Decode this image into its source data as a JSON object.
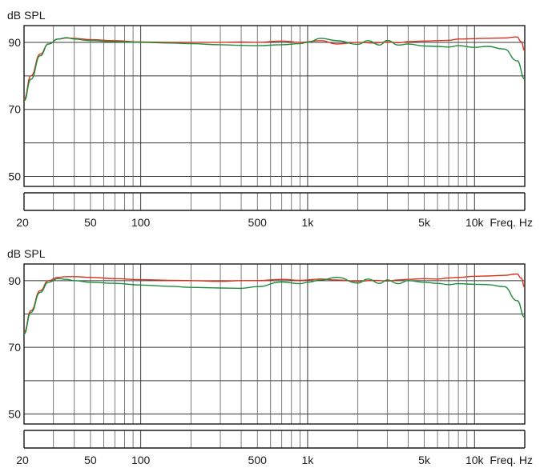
{
  "chart_data": [
    {
      "type": "line",
      "ylabel": "dB SPL",
      "xlabel": "Freq. Hz",
      "xscale": "log",
      "xlim": [
        20,
        20000
      ],
      "ylim": [
        47,
        95
      ],
      "ytick_labels": [
        "90",
        "70",
        "50"
      ],
      "yticks": [
        90,
        70,
        50
      ],
      "ygrid": [
        90,
        80,
        70,
        60,
        50
      ],
      "xtick_labels": [
        "20",
        "50",
        "100",
        "500",
        "1k",
        "5k",
        "10k"
      ],
      "xticks": [
        20,
        50,
        100,
        500,
        1000,
        5000,
        10000
      ],
      "series": [
        {
          "color": "#d9331f",
          "x": [
            20,
            22,
            25,
            28,
            32,
            36,
            40,
            50,
            70,
            100,
            150,
            200,
            300,
            400,
            500,
            700,
            900,
            1200,
            1500,
            2000,
            2500,
            3000,
            3500,
            4000,
            5000,
            6000,
            7000,
            8000,
            10000,
            12000,
            15000,
            18000,
            19000,
            20000
          ],
          "y": [
            73,
            80,
            86.5,
            89.5,
            91,
            91.3,
            91.2,
            90.8,
            90.5,
            90.1,
            90,
            90,
            90,
            90.1,
            90,
            90.4,
            90,
            90.5,
            89.5,
            90,
            89.8,
            90.1,
            89.9,
            90.2,
            90.4,
            90.5,
            90.6,
            91,
            91.1,
            91.2,
            91.3,
            91.6,
            90.2,
            87.5
          ]
        },
        {
          "color": "#1f8c3a",
          "x": [
            20,
            22,
            25,
            28,
            32,
            36,
            40,
            50,
            70,
            100,
            150,
            200,
            300,
            400,
            500,
            700,
            900,
            1000,
            1200,
            1500,
            2000,
            2300,
            2700,
            3000,
            3500,
            4000,
            5000,
            6000,
            7000,
            8000,
            10000,
            12000,
            15000,
            18000,
            20000
          ],
          "y": [
            72.5,
            79,
            86,
            89.5,
            91,
            91.4,
            91,
            90.5,
            90.2,
            90,
            89.8,
            89.6,
            89.3,
            89.1,
            89,
            89.3,
            89.6,
            90,
            91.2,
            90.5,
            89.4,
            90.5,
            89.2,
            90.6,
            89.2,
            89.5,
            88.9,
            88.8,
            88.6,
            89,
            88.5,
            88.8,
            88,
            84.5,
            79
          ]
        }
      ]
    },
    {
      "type": "line",
      "ylabel": "dB SPL",
      "xlabel": "Freq. Hz",
      "xscale": "log",
      "xlim": [
        20,
        20000
      ],
      "ylim": [
        47,
        95
      ],
      "ytick_labels": [
        "90",
        "70",
        "50"
      ],
      "yticks": [
        90,
        70,
        50
      ],
      "ygrid": [
        90,
        80,
        70,
        60,
        50
      ],
      "xtick_labels": [
        "20",
        "50",
        "100",
        "500",
        "1k",
        "5k",
        "10k"
      ],
      "xticks": [
        20,
        50,
        100,
        500,
        1000,
        5000,
        10000
      ],
      "series": [
        {
          "color": "#d9331f",
          "x": [
            20,
            22,
            25,
            28,
            32,
            36,
            40,
            50,
            70,
            100,
            150,
            200,
            300,
            400,
            500,
            700,
            900,
            1200,
            1500,
            2000,
            2500,
            3000,
            3500,
            4000,
            5000,
            6000,
            7000,
            8000,
            10000,
            12000,
            15000,
            18000,
            19000,
            20000
          ],
          "y": [
            74.5,
            81,
            87,
            90,
            91,
            91.2,
            91.2,
            91,
            90.6,
            90.3,
            90.1,
            90,
            89.8,
            90,
            90,
            90.4,
            90.1,
            90.5,
            90.2,
            89.8,
            90.1,
            89.9,
            90.2,
            90.4,
            90.6,
            90.5,
            90.8,
            91,
            91.3,
            91.4,
            91.6,
            92,
            90.8,
            88
          ]
        },
        {
          "color": "#1f8c3a",
          "x": [
            20,
            22,
            25,
            28,
            32,
            36,
            40,
            50,
            70,
            100,
            150,
            200,
            300,
            400,
            500,
            700,
            900,
            1000,
            1200,
            1500,
            2000,
            2300,
            2700,
            3000,
            3500,
            4000,
            5000,
            6000,
            7000,
            8000,
            10000,
            12000,
            15000,
            18000,
            20000
          ],
          "y": [
            74,
            80.5,
            86.5,
            89.5,
            90.6,
            90.4,
            90,
            89.5,
            89.2,
            88.7,
            88.3,
            88,
            87.8,
            87.7,
            88.2,
            89.6,
            89.1,
            89.5,
            90.2,
            91,
            89.3,
            90.5,
            89.2,
            90.2,
            89.1,
            90,
            89.5,
            89.2,
            88.8,
            89.1,
            88.9,
            88.8,
            88.2,
            84,
            79
          ]
        }
      ]
    }
  ]
}
